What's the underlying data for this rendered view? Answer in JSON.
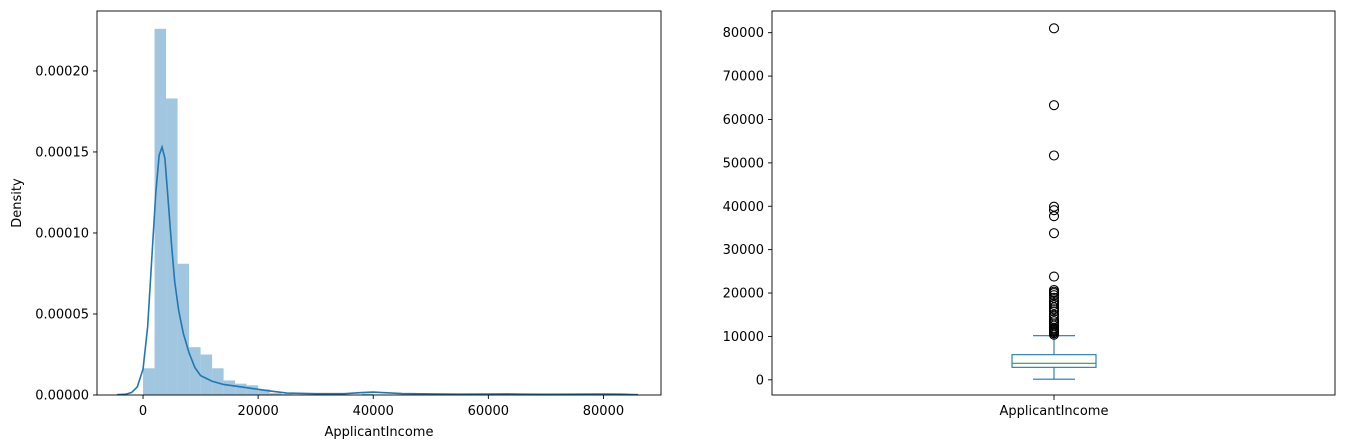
{
  "chart_data": [
    {
      "type": "histogram+kde",
      "title": "",
      "xlabel": "ApplicantIncome",
      "ylabel": "Density",
      "xlim": [
        -8000,
        90000
      ],
      "ylim": [
        0,
        0.000237
      ],
      "xticks": [
        {
          "value": 0,
          "label": "0"
        },
        {
          "value": 20000,
          "label": "20000"
        },
        {
          "value": 40000,
          "label": "40000"
        },
        {
          "value": 60000,
          "label": "60000"
        },
        {
          "value": 80000,
          "label": "80000"
        }
      ],
      "yticks": [
        {
          "value": 0,
          "label": "0.00000"
        },
        {
          "value": 5e-05,
          "label": "0.00005"
        },
        {
          "value": 0.0001,
          "label": "0.00010"
        },
        {
          "value": 0.00015,
          "label": "0.00015"
        },
        {
          "value": 0.0002,
          "label": "0.00020"
        }
      ],
      "bin_width": 2000,
      "bins": [
        {
          "x0": 0,
          "value": 1.65e-05
        },
        {
          "x0": 2000,
          "value": 0.000226
        },
        {
          "x0": 4000,
          "value": 0.000183
        },
        {
          "x0": 6000,
          "value": 8.1e-05
        },
        {
          "x0": 8000,
          "value": 2.95e-05
        },
        {
          "x0": 10000,
          "value": 2.5e-05
        },
        {
          "x0": 12000,
          "value": 1.65e-05
        },
        {
          "x0": 14000,
          "value": 9e-06
        },
        {
          "x0": 16000,
          "value": 7e-06
        },
        {
          "x0": 18000,
          "value": 6e-06
        },
        {
          "x0": 20000,
          "value": 3.5e-06
        },
        {
          "x0": 22000,
          "value": 1.2e-06
        },
        {
          "x0": 24000,
          "value": 5e-07
        },
        {
          "x0": 30000,
          "value": 3e-07
        },
        {
          "x0": 38000,
          "value": 8e-07
        },
        {
          "x0": 40000,
          "value": 3e-07
        },
        {
          "x0": 50000,
          "value": 5e-07
        },
        {
          "x0": 62000,
          "value": 3e-07
        },
        {
          "x0": 80000,
          "value": 4e-07
        }
      ],
      "kde": {
        "x": [
          -4500,
          -3000,
          -2000,
          -1000,
          0,
          800,
          1500,
          2200,
          2800,
          3300,
          3800,
          4300,
          4900,
          5500,
          6200,
          7000,
          8000,
          9000,
          10000,
          12000,
          14000,
          16000,
          18000,
          20000,
          22000,
          25000,
          30000,
          35000,
          38000,
          40000,
          42000,
          45000,
          50000,
          55000,
          60000,
          63000,
          66000,
          70000,
          75000,
          80000,
          83000,
          86000
        ],
        "y": [
          2e-07,
          5e-07,
          1.5e-06,
          5e-06,
          1.6e-05,
          4.2e-05,
          8.3e-05,
          0.000124,
          0.000148,
          0.000153,
          0.000146,
          0.000123,
          9.5e-05,
          7e-05,
          5.2e-05,
          3.8e-05,
          2.6e-05,
          1.7e-05,
          1.2e-05,
          8.5e-06,
          6.5e-06,
          5.5e-06,
          4.5e-06,
          3.5e-06,
          2.5e-06,
          1.2e-06,
          8e-07,
          8e-07,
          1.5e-06,
          1.8e-06,
          1.4e-06,
          9e-07,
          7e-07,
          5e-07,
          6e-07,
          7e-07,
          5e-07,
          4e-07,
          5e-07,
          6e-07,
          5e-07,
          2e-07
        ]
      },
      "colors": {
        "bars": "#a1c6e0",
        "kde": "#1f77b4"
      }
    },
    {
      "type": "boxplot",
      "title": "",
      "category": "ApplicantIncome",
      "ylim": [
        -3500,
        85000
      ],
      "yticks": [
        {
          "value": 0,
          "label": "0"
        },
        {
          "value": 10000,
          "label": "10000"
        },
        {
          "value": 20000,
          "label": "20000"
        },
        {
          "value": 30000,
          "label": "30000"
        },
        {
          "value": 40000,
          "label": "40000"
        },
        {
          "value": 50000,
          "label": "50000"
        },
        {
          "value": 60000,
          "label": "60000"
        },
        {
          "value": 70000,
          "label": "70000"
        },
        {
          "value": 80000,
          "label": "80000"
        }
      ],
      "stats": {
        "whisker_low": 150,
        "q1": 2877,
        "median": 3812,
        "q3": 5795,
        "whisker_high": 10171
      },
      "outliers": [
        10400,
        10750,
        11000,
        11250,
        11500,
        11750,
        12000,
        12500,
        13000,
        13500,
        14000,
        14600,
        15000,
        15750,
        16250,
        16700,
        17250,
        17700,
        18200,
        18900,
        19500,
        20000,
        20300,
        20700,
        23800,
        33800,
        37700,
        39100,
        39900,
        51700,
        63300,
        81000
      ],
      "colors": {
        "box": "#1f77b4",
        "median": "#2ca02c",
        "outlier": "#000000"
      }
    }
  ]
}
